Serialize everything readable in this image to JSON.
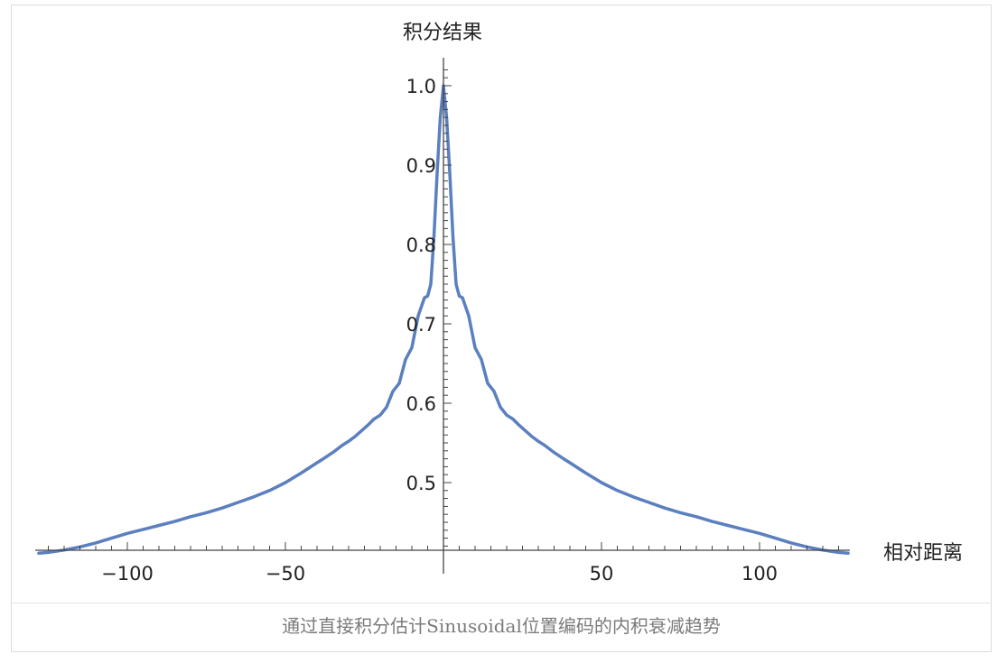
{
  "caption": "通过直接积分估计Sinusoidal位置编码的内积衰减趋势",
  "chart_data": {
    "type": "line",
    "title": "",
    "xlabel": "相对距离",
    "ylabel": "积分结果",
    "xlim": [
      -128,
      128
    ],
    "ylim": [
      0.41,
      1.03
    ],
    "x_ticks": [
      -100,
      -50,
      50,
      100
    ],
    "x_tick_labels": [
      "−100",
      "−50",
      "50",
      "100"
    ],
    "y_ticks": [
      0.5,
      0.6,
      0.7,
      0.8,
      0.9,
      1.0
    ],
    "y_tick_labels": [
      "0.5",
      "0.6",
      "0.7",
      "0.8",
      "0.9",
      "1.0"
    ],
    "grid": false,
    "line_color": "#5b7fbf",
    "series": [
      {
        "x": [
          0,
          1,
          2,
          3,
          4,
          5,
          6,
          8,
          10,
          12,
          14,
          16,
          18,
          20,
          22,
          24,
          26,
          28,
          30,
          32,
          35,
          38,
          40,
          45,
          50,
          55,
          60,
          65,
          70,
          75,
          80,
          85,
          90,
          95,
          100,
          105,
          110,
          115,
          120,
          125,
          128
        ],
        "y": [
          1.0,
          0.96,
          0.89,
          0.81,
          0.75,
          0.735,
          0.733,
          0.71,
          0.67,
          0.655,
          0.625,
          0.615,
          0.595,
          0.585,
          0.58,
          0.572,
          0.565,
          0.558,
          0.552,
          0.547,
          0.538,
          0.53,
          0.525,
          0.512,
          0.5,
          0.49,
          0.482,
          0.475,
          0.468,
          0.462,
          0.457,
          0.451,
          0.446,
          0.441,
          0.436,
          0.43,
          0.424,
          0.419,
          0.415,
          0.412,
          0.411
        ],
        "symmetric": true
      }
    ]
  }
}
